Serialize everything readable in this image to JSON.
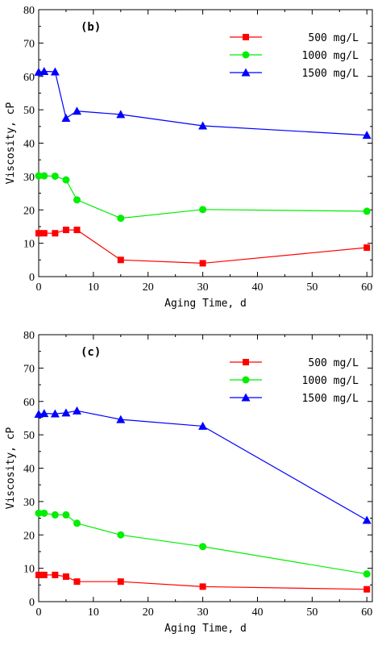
{
  "chart_data": [
    {
      "type": "line",
      "panel_label": "(b)",
      "xlabel": "Aging Time, d",
      "ylabel": "Viscosity, cP",
      "xlim": [
        0,
        61
      ],
      "ylim": [
        0,
        80
      ],
      "xticks": [
        0,
        10,
        20,
        30,
        40,
        50,
        60
      ],
      "yticks": [
        0,
        10,
        20,
        30,
        40,
        50,
        60,
        70,
        80
      ],
      "grid": false,
      "legend_position": "top-right",
      "series": [
        {
          "name": "500 mg/L",
          "color": "#ff0000",
          "marker": "square",
          "x": [
            0,
            1,
            3,
            5,
            7,
            15,
            30,
            60
          ],
          "y": [
            13.0,
            13.0,
            13.0,
            14.0,
            14.0,
            5.0,
            4.0,
            8.7
          ]
        },
        {
          "name": "1000 mg/L",
          "color": "#00ee00",
          "marker": "circle",
          "x": [
            0,
            1,
            3,
            5,
            7,
            15,
            30,
            60
          ],
          "y": [
            30.2,
            30.2,
            30.1,
            29.0,
            23.0,
            17.5,
            20.1,
            19.6
          ]
        },
        {
          "name": "1500 mg/L",
          "color": "#0000ff",
          "marker": "triangle",
          "x": [
            0,
            1,
            3,
            5,
            7,
            15,
            30,
            60
          ],
          "y": [
            61.3,
            61.5,
            61.4,
            47.5,
            49.6,
            48.6,
            45.2,
            42.4
          ]
        }
      ]
    },
    {
      "type": "line",
      "panel_label": "(c)",
      "xlabel": "Aging Time, d",
      "ylabel": "Viscosity, cP",
      "xlim": [
        0,
        61
      ],
      "ylim": [
        0,
        80
      ],
      "xticks": [
        0,
        10,
        20,
        30,
        40,
        50,
        60
      ],
      "yticks": [
        0,
        10,
        20,
        30,
        40,
        50,
        60,
        70,
        80
      ],
      "grid": false,
      "legend_position": "top-right",
      "series": [
        {
          "name": "500 mg/L",
          "color": "#ff0000",
          "marker": "square",
          "x": [
            0,
            1,
            3,
            5,
            7,
            15,
            30,
            60
          ],
          "y": [
            8.0,
            8.0,
            8.0,
            7.5,
            6.0,
            6.0,
            4.5,
            3.7
          ]
        },
        {
          "name": "1000 mg/L",
          "color": "#00ee00",
          "marker": "circle",
          "x": [
            0,
            1,
            3,
            5,
            7,
            15,
            30,
            60
          ],
          "y": [
            26.5,
            26.5,
            26.0,
            26.0,
            23.5,
            20.0,
            16.5,
            8.3
          ]
        },
        {
          "name": "1500 mg/L",
          "color": "#0000ff",
          "marker": "triangle",
          "x": [
            0,
            1,
            3,
            5,
            7,
            15,
            30,
            60
          ],
          "y": [
            56.2,
            56.4,
            56.3,
            56.6,
            57.2,
            54.6,
            52.6,
            24.4
          ]
        }
      ]
    }
  ]
}
